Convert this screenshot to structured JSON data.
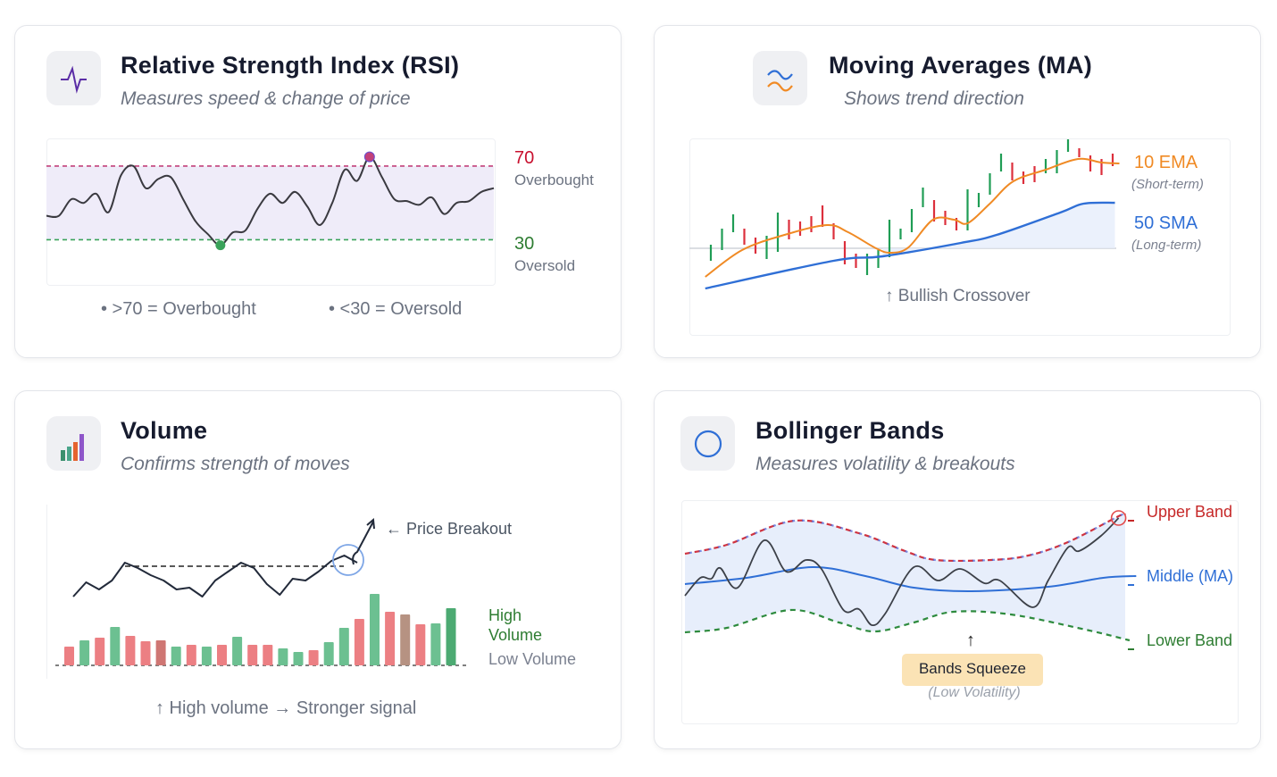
{
  "colors": {
    "title": "#161b2e",
    "subtitle": "#6b7280",
    "overbought": "#c8102e",
    "oversold": "#2e7d32",
    "ema": "#f08a24",
    "sma": "#2f6fd6",
    "candle_up": "#1f9d55",
    "candle_down": "#dc2f3c",
    "upper_band": "#c62828",
    "middle_band": "#2f6fd6",
    "lower_band": "#2e7d32",
    "squeeze_bg": "#fbe3b5"
  },
  "rsi": {
    "icon": "pulse-icon",
    "title": "Relative Strength Index (RSI)",
    "subtitle": "Measures speed & change of price",
    "overbought_value": "70",
    "overbought_label": "Overbought",
    "oversold_value": "30",
    "oversold_label": "Oversold",
    "legend_overbought": "• >70 = Overbought",
    "legend_oversold": "• <30 = Oversold"
  },
  "ma": {
    "icon": "wave-lines-icon",
    "title": "Moving Averages (MA)",
    "subtitle": "Shows trend direction",
    "ema_label": "10 EMA",
    "ema_note": "(Short-term)",
    "sma_label": "50 SMA",
    "sma_note": "(Long-term)",
    "crossover_label": "↑ Bullish Crossover"
  },
  "volume": {
    "icon": "bar-chart-icon",
    "title": "Volume",
    "subtitle": "Confirms strength of moves",
    "breakout_label": "← Price Breakout",
    "high_volume_line1": "High",
    "high_volume_line2": "Volume",
    "low_volume_label": "Low Volume",
    "footer": "↑ High volume → Stronger signal"
  },
  "bollinger": {
    "icon": "circle-icon",
    "title": "Bollinger Bands",
    "subtitle": "Measures volatility & breakouts",
    "upper_label": "Upper Band",
    "middle_label": "Middle (MA)",
    "lower_label": "Lower Band",
    "squeeze_label": "Bands Squeeze",
    "squeeze_note": "(Low Volatility)"
  },
  "chart_data": [
    {
      "id": "rsi",
      "type": "line",
      "ylim": [
        6,
        85
      ],
      "levels": [
        70,
        30
      ],
      "values": [
        43,
        43,
        52,
        50,
        55,
        45,
        65,
        70,
        58,
        63,
        64,
        52,
        40,
        33,
        27,
        34,
        35,
        47,
        55,
        50,
        56,
        48,
        38,
        50,
        68,
        62,
        75,
        64,
        52,
        51,
        49,
        53,
        44,
        50,
        51,
        56,
        58
      ]
    },
    {
      "id": "ma",
      "type": "candlestick",
      "ylim": [
        0,
        100
      ],
      "baseline": 36,
      "candles": [
        [
          29,
          38,
          "up"
        ],
        [
          35,
          47,
          "up"
        ],
        [
          45,
          55,
          "up"
        ],
        [
          38,
          47,
          "down"
        ],
        [
          33,
          42,
          "down"
        ],
        [
          30,
          43,
          "up"
        ],
        [
          34,
          56,
          "up"
        ],
        [
          41,
          52,
          "down"
        ],
        [
          43,
          51,
          "down"
        ],
        [
          45,
          54,
          "down"
        ],
        [
          48,
          60,
          "down"
        ],
        [
          41,
          50,
          "down"
        ],
        [
          27,
          40,
          "down"
        ],
        [
          25,
          33,
          "down"
        ],
        [
          21,
          33,
          "up"
        ],
        [
          25,
          35,
          "up"
        ],
        [
          31,
          52,
          "up"
        ],
        [
          41,
          47,
          "up"
        ],
        [
          45,
          58,
          "up"
        ],
        [
          59,
          70,
          "up"
        ],
        [
          51,
          63,
          "down"
        ],
        [
          49,
          57,
          "down"
        ],
        [
          46,
          53,
          "down"
        ],
        [
          46,
          69,
          "up"
        ],
        [
          59,
          67,
          "up"
        ],
        [
          66,
          78,
          "up"
        ],
        [
          79,
          89,
          "up"
        ],
        [
          74,
          84,
          "down"
        ],
        [
          72,
          79,
          "down"
        ],
        [
          73,
          82,
          "down"
        ],
        [
          78,
          86,
          "up"
        ],
        [
          78,
          91,
          "up"
        ],
        [
          90,
          97,
          "up"
        ],
        [
          87,
          92,
          "down"
        ],
        [
          79,
          88,
          "down"
        ],
        [
          77,
          86,
          "down"
        ],
        [
          82,
          89,
          "down"
        ]
      ],
      "ema": [
        [
          -0.5,
          20
        ],
        [
          2.8,
          35
        ],
        [
          6.6,
          43.5
        ],
        [
          10.4,
          49
        ],
        [
          12.3,
          45
        ],
        [
          14.8,
          36
        ],
        [
          16.1,
          33.5
        ],
        [
          17.7,
          36.5
        ],
        [
          19.9,
          52
        ],
        [
          21.8,
          52
        ],
        [
          23,
          50
        ],
        [
          25,
          61
        ],
        [
          27.1,
          73.5
        ],
        [
          30,
          80
        ],
        [
          32.9,
          86
        ],
        [
          35,
          84
        ],
        [
          36.6,
          83.5
        ]
      ],
      "sma": [
        [
          -0.5,
          13.5
        ],
        [
          11,
          29
        ],
        [
          15.4,
          31.5
        ],
        [
          22.4,
          39
        ],
        [
          25.6,
          43.5
        ],
        [
          31.3,
          56
        ],
        [
          33.4,
          61
        ],
        [
          36.2,
          61.5
        ]
      ]
    },
    {
      "id": "volume",
      "type": "bar",
      "volumes": [
        21,
        28,
        31,
        43,
        33,
        27,
        28,
        21,
        23,
        21,
        23,
        32,
        23,
        23,
        19,
        15,
        17,
        26,
        42,
        52,
        80,
        60,
        57,
        46,
        47,
        64
      ],
      "directions": [
        "down",
        "up",
        "down",
        "up",
        "down",
        "down",
        "down-dark",
        "up",
        "down",
        "up",
        "down",
        "up",
        "down",
        "down",
        "up",
        "up",
        "down",
        "up",
        "up",
        "down",
        "up",
        "down",
        "mixed",
        "down",
        "up",
        "up-dark"
      ],
      "price": [
        16,
        24,
        20,
        25,
        35,
        32,
        28,
        25,
        20,
        21,
        16,
        25,
        30,
        35,
        32,
        23,
        17,
        26,
        25,
        30,
        36,
        39,
        35
      ],
      "resistance": 33
    },
    {
      "id": "bollinger",
      "type": "line",
      "xlim": [
        0,
        100
      ],
      "upper": [
        [
          0,
          70
        ],
        [
          9.5,
          75
        ],
        [
          25,
          88.5
        ],
        [
          39.5,
          81.5
        ],
        [
          50,
          71.5
        ],
        [
          57,
          66.5
        ],
        [
          69.5,
          66.5
        ],
        [
          78,
          69
        ],
        [
          87,
          76.5
        ],
        [
          98.5,
          91
        ],
        [
          100,
          92
        ]
      ],
      "middle": [
        [
          0,
          53
        ],
        [
          14,
          56.5
        ],
        [
          29,
          62.5
        ],
        [
          41,
          57.5
        ],
        [
          52,
          51
        ],
        [
          65,
          49
        ],
        [
          82.5,
          51.5
        ],
        [
          95,
          56.5
        ],
        [
          102.5,
          57.5
        ]
      ],
      "lower": [
        [
          0,
          26
        ],
        [
          9.5,
          28.5
        ],
        [
          24,
          38.5
        ],
        [
          35,
          31.5
        ],
        [
          43,
          26.5
        ],
        [
          52,
          31.5
        ],
        [
          61,
          37.5
        ],
        [
          74,
          36
        ],
        [
          91,
          27.5
        ],
        [
          101,
          21.5
        ]
      ],
      "price": [
        [
          0,
          46.5
        ],
        [
          3.5,
          56.5
        ],
        [
          6,
          56
        ],
        [
          8,
          62
        ],
        [
          12,
          51
        ],
        [
          18,
          77.5
        ],
        [
          23,
          60
        ],
        [
          27.5,
          66.5
        ],
        [
          31,
          61.5
        ],
        [
          36,
          38.5
        ],
        [
          39.5,
          39
        ],
        [
          42.5,
          30
        ],
        [
          45.5,
          36.5
        ],
        [
          52,
          62.5
        ],
        [
          57.5,
          55
        ],
        [
          62.5,
          61.5
        ],
        [
          68,
          53.5
        ],
        [
          71.5,
          55
        ],
        [
          79,
          40
        ],
        [
          82.5,
          55
        ],
        [
          87,
          73.5
        ],
        [
          89.5,
          71.5
        ],
        [
          94.5,
          80
        ],
        [
          98.5,
          90
        ]
      ]
    }
  ]
}
